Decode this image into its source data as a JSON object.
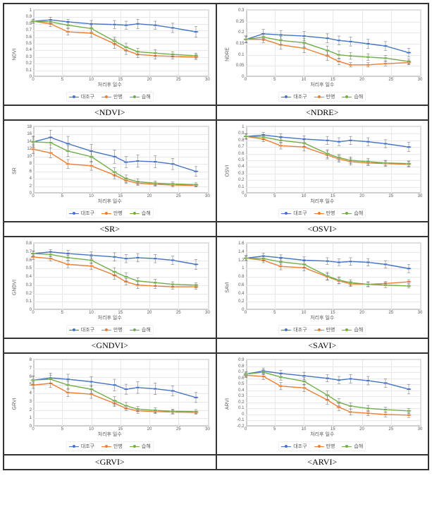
{
  "global": {
    "xlabel": "처리후 일수",
    "x": [
      0,
      3,
      6,
      10,
      14,
      16,
      18,
      21,
      24,
      28
    ],
    "xlim": [
      0,
      30
    ],
    "xtick_step": 5,
    "series_names": [
      "대조구",
      "만병",
      "습해"
    ],
    "series_colors": [
      "#4472c4",
      "#ed7d31",
      "#70ad47"
    ],
    "grid_color": "#e8e8e8",
    "background_color": "#ffffff",
    "label_fontsize": 7,
    "tick_fontsize": 6,
    "marker": "circle",
    "line_width": 1.4
  },
  "captions": [
    "<NDVI>",
    "<NDRE>",
    "<SR>",
    "<OSVI>",
    "<GNDVI>",
    "<SAVI>",
    "<GRVI>",
    "<ARVI>"
  ],
  "charts": [
    {
      "ylabel": "NDVI",
      "ylim": [
        0,
        1.0
      ],
      "ytick_step": 0.1,
      "series": [
        [
          0.84,
          0.86,
          0.83,
          0.8,
          0.79,
          0.78,
          0.8,
          0.78,
          0.74,
          0.68
        ],
        [
          0.84,
          0.8,
          0.68,
          0.66,
          0.5,
          0.4,
          0.34,
          0.32,
          0.31,
          0.3
        ],
        [
          0.84,
          0.83,
          0.78,
          0.73,
          0.54,
          0.45,
          0.38,
          0.36,
          0.34,
          0.32
        ]
      ],
      "err": [
        [
          0.03,
          0.04,
          0.04,
          0.05,
          0.06,
          0.06,
          0.07,
          0.06,
          0.07,
          0.08
        ],
        [
          0.03,
          0.04,
          0.05,
          0.06,
          0.07,
          0.06,
          0.05,
          0.05,
          0.04,
          0.04
        ],
        [
          0.03,
          0.03,
          0.04,
          0.05,
          0.06,
          0.06,
          0.05,
          0.05,
          0.04,
          0.04
        ]
      ]
    },
    {
      "ylabel": "NDRE",
      "ylim": [
        0,
        0.3
      ],
      "ytick_step": 0.05,
      "series": [
        [
          0.17,
          0.195,
          0.19,
          0.185,
          0.175,
          0.165,
          0.16,
          0.15,
          0.14,
          0.11
        ],
        [
          0.17,
          0.17,
          0.145,
          0.13,
          0.095,
          0.07,
          0.055,
          0.055,
          0.06,
          0.065
        ],
        [
          0.17,
          0.18,
          0.165,
          0.155,
          0.12,
          0.1,
          0.095,
          0.09,
          0.085,
          0.07
        ]
      ],
      "err": [
        [
          0.015,
          0.02,
          0.02,
          0.02,
          0.02,
          0.02,
          0.02,
          0.02,
          0.02,
          0.02
        ],
        [
          0.015,
          0.015,
          0.02,
          0.02,
          0.02,
          0.015,
          0.01,
          0.01,
          0.01,
          0.01
        ],
        [
          0.015,
          0.015,
          0.018,
          0.02,
          0.02,
          0.018,
          0.015,
          0.015,
          0.012,
          0.012
        ]
      ]
    },
    {
      "ylabel": "SR",
      "ylim": [
        0,
        18
      ],
      "ytick_step": 2,
      "series": [
        [
          14.0,
          15.2,
          13.5,
          11.5,
          10.0,
          8.5,
          8.8,
          8.6,
          8.0,
          6.0
        ],
        [
          12.0,
          11.0,
          8.0,
          7.5,
          5.0,
          3.5,
          2.8,
          2.5,
          2.3,
          2.2
        ],
        [
          14.0,
          13.8,
          11.5,
          10.0,
          5.8,
          4.0,
          3.2,
          2.8,
          2.6,
          2.4
        ]
      ],
      "err": [
        [
          1.5,
          2.0,
          2.0,
          1.8,
          1.8,
          1.5,
          1.6,
          1.6,
          1.5,
          1.3
        ],
        [
          1.2,
          1.3,
          1.2,
          1.2,
          1.0,
          0.8,
          0.6,
          0.5,
          0.5,
          0.4
        ],
        [
          1.5,
          1.5,
          1.5,
          1.5,
          1.2,
          1.0,
          0.8,
          0.6,
          0.5,
          0.5
        ]
      ]
    },
    {
      "ylabel": "OSVI",
      "ylim": [
        0,
        1.0
      ],
      "ytick_step": 0.1,
      "series": [
        [
          0.86,
          0.88,
          0.85,
          0.82,
          0.8,
          0.78,
          0.8,
          0.78,
          0.75,
          0.7
        ],
        [
          0.86,
          0.82,
          0.72,
          0.7,
          0.58,
          0.52,
          0.48,
          0.46,
          0.45,
          0.44
        ],
        [
          0.86,
          0.85,
          0.8,
          0.76,
          0.6,
          0.54,
          0.5,
          0.48,
          0.46,
          0.45
        ]
      ],
      "err": [
        [
          0.04,
          0.04,
          0.05,
          0.05,
          0.06,
          0.06,
          0.06,
          0.06,
          0.06,
          0.07
        ],
        [
          0.04,
          0.04,
          0.05,
          0.06,
          0.06,
          0.05,
          0.05,
          0.04,
          0.04,
          0.04
        ],
        [
          0.04,
          0.04,
          0.04,
          0.05,
          0.06,
          0.05,
          0.05,
          0.05,
          0.04,
          0.04
        ]
      ]
    },
    {
      "ylabel": "GNDVI",
      "ylim": [
        0,
        0.8
      ],
      "ytick_step": 0.1,
      "series": [
        [
          0.68,
          0.7,
          0.68,
          0.66,
          0.64,
          0.62,
          0.63,
          0.62,
          0.6,
          0.55
        ],
        [
          0.64,
          0.62,
          0.55,
          0.53,
          0.42,
          0.34,
          0.3,
          0.29,
          0.28,
          0.28
        ],
        [
          0.68,
          0.67,
          0.63,
          0.6,
          0.46,
          0.4,
          0.35,
          0.33,
          0.31,
          0.3
        ]
      ],
      "err": [
        [
          0.03,
          0.03,
          0.04,
          0.04,
          0.05,
          0.05,
          0.05,
          0.05,
          0.05,
          0.06
        ],
        [
          0.03,
          0.03,
          0.04,
          0.04,
          0.05,
          0.04,
          0.04,
          0.03,
          0.03,
          0.03
        ],
        [
          0.03,
          0.03,
          0.03,
          0.04,
          0.05,
          0.05,
          0.04,
          0.04,
          0.03,
          0.03
        ]
      ]
    },
    {
      "ylabel": "SAVI",
      "ylim": [
        0,
        1.6
      ],
      "ytick_step": 0.2,
      "series": [
        [
          1.25,
          1.3,
          1.26,
          1.2,
          1.18,
          1.15,
          1.17,
          1.15,
          1.1,
          1.0
        ],
        [
          1.25,
          1.2,
          1.05,
          1.02,
          0.8,
          0.7,
          0.63,
          0.62,
          0.64,
          0.68
        ],
        [
          1.25,
          1.24,
          1.16,
          1.1,
          0.82,
          0.72,
          0.66,
          0.62,
          0.6,
          0.58
        ]
      ],
      "err": [
        [
          0.06,
          0.07,
          0.07,
          0.08,
          0.08,
          0.08,
          0.09,
          0.09,
          0.09,
          0.1
        ],
        [
          0.06,
          0.06,
          0.08,
          0.08,
          0.08,
          0.07,
          0.06,
          0.05,
          0.05,
          0.05
        ],
        [
          0.06,
          0.06,
          0.07,
          0.08,
          0.09,
          0.08,
          0.07,
          0.06,
          0.06,
          0.05
        ]
      ]
    },
    {
      "ylabel": "GRVI",
      "ylim": [
        0,
        8
      ],
      "ytick_step": 1,
      "series": [
        [
          5.6,
          5.85,
          5.7,
          5.4,
          5.0,
          4.5,
          4.7,
          4.55,
          4.3,
          3.5
        ],
        [
          5.0,
          5.2,
          4.1,
          3.9,
          2.8,
          2.2,
          1.9,
          1.8,
          1.75,
          1.7
        ],
        [
          5.6,
          5.7,
          5.0,
          4.5,
          3.1,
          2.5,
          2.1,
          1.95,
          1.85,
          1.8
        ]
      ],
      "err": [
        [
          0.5,
          0.6,
          0.6,
          0.6,
          0.7,
          0.6,
          0.7,
          0.7,
          0.6,
          0.6
        ],
        [
          0.4,
          0.5,
          0.5,
          0.5,
          0.4,
          0.3,
          0.3,
          0.25,
          0.25,
          0.2
        ],
        [
          0.5,
          0.5,
          0.5,
          0.5,
          0.5,
          0.4,
          0.3,
          0.3,
          0.25,
          0.25
        ]
      ]
    },
    {
      "ylabel": "ARVI",
      "ylim": [
        -0.2,
        0.9
      ],
      "ytick_step": 0.1,
      "series": [
        [
          0.67,
          0.72,
          0.68,
          0.64,
          0.6,
          0.57,
          0.59,
          0.56,
          0.52,
          0.42
        ],
        [
          0.65,
          0.63,
          0.47,
          0.44,
          0.24,
          0.12,
          0.04,
          0.02,
          0.0,
          -0.01
        ],
        [
          0.67,
          0.7,
          0.62,
          0.55,
          0.32,
          0.2,
          0.14,
          0.1,
          0.08,
          0.06
        ]
      ],
      "err": [
        [
          0.04,
          0.05,
          0.05,
          0.06,
          0.06,
          0.06,
          0.07,
          0.07,
          0.07,
          0.08
        ],
        [
          0.04,
          0.05,
          0.06,
          0.06,
          0.07,
          0.06,
          0.05,
          0.04,
          0.04,
          0.04
        ],
        [
          0.04,
          0.04,
          0.05,
          0.06,
          0.07,
          0.06,
          0.05,
          0.05,
          0.04,
          0.04
        ]
      ]
    }
  ]
}
